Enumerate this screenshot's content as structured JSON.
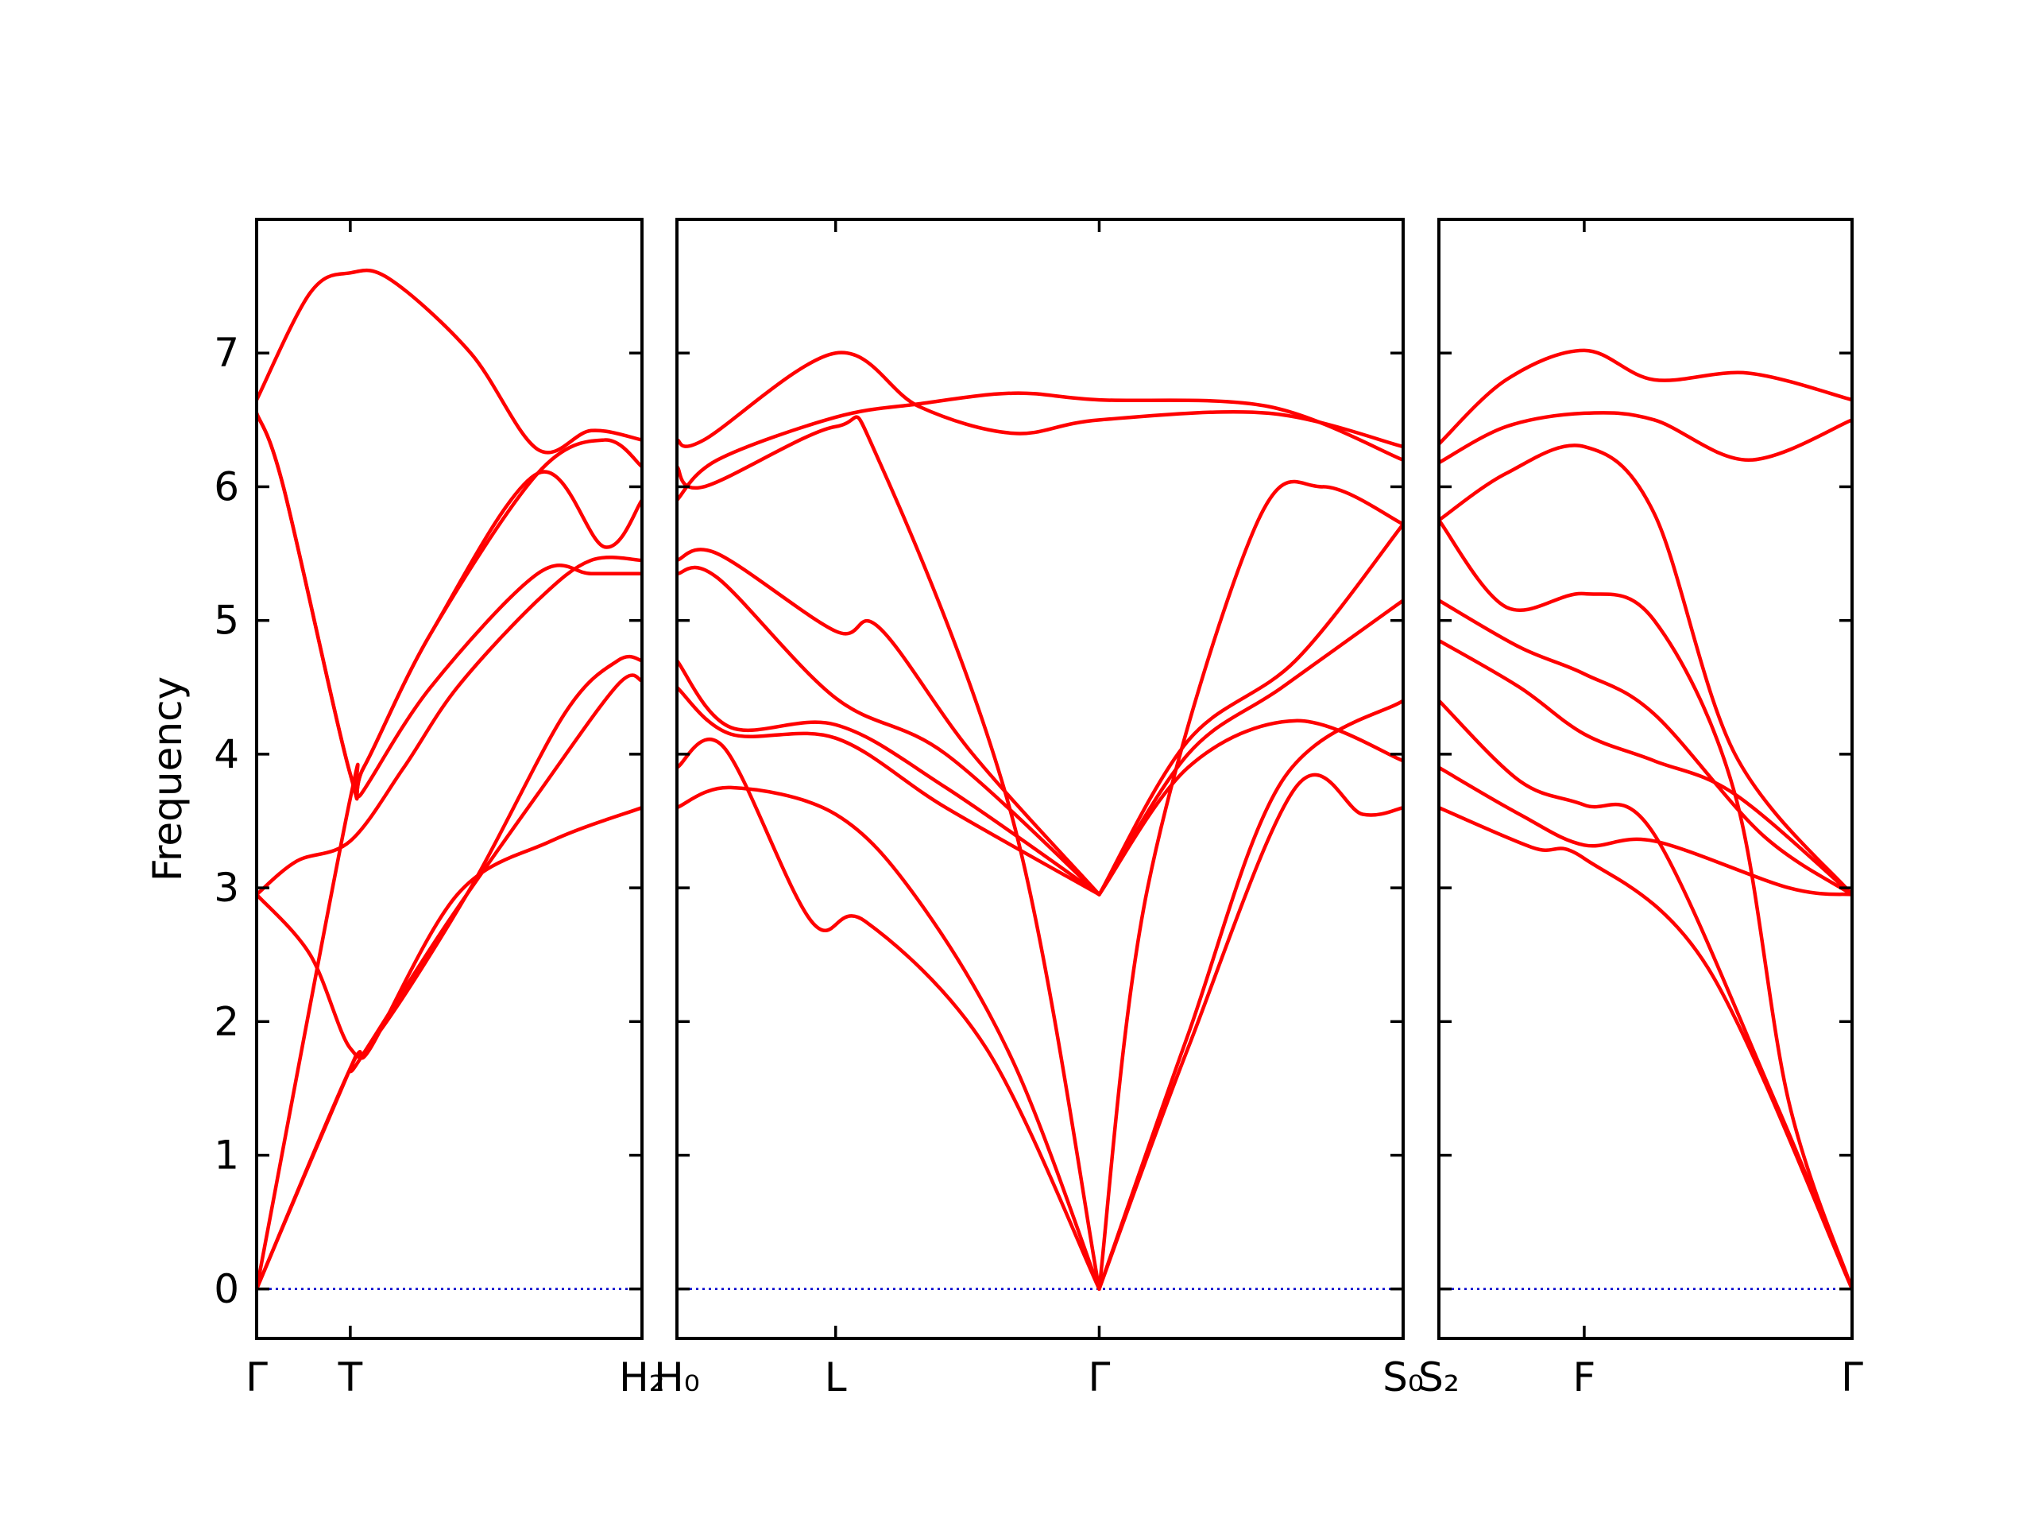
{
  "chart_data": {
    "type": "line",
    "ylabel": "Frequency",
    "ylim": [
      -0.37,
      8.0
    ],
    "yticks": [
      0,
      1,
      2,
      3,
      4,
      5,
      6,
      7
    ],
    "band_color": "#ff0000",
    "zero_line_color": "#0000cc",
    "panels": [
      {
        "xlim": [
          0,
          2.88
        ],
        "ticks": [
          {
            "x": 0,
            "label": "Γ"
          },
          {
            "x": 0.7,
            "label": "T"
          },
          {
            "x": 2.88,
            "label": "H₂"
          }
        ],
        "bands": [
          [
            [
              0,
              0
            ],
            [
              0.7,
              1.65
            ],
            [
              0.74,
              1.67
            ],
            [
              1.4,
              2.7
            ],
            [
              2.1,
              3.7
            ],
            [
              2.7,
              4.52
            ],
            [
              2.88,
              4.55
            ]
          ],
          [
            [
              0,
              0
            ],
            [
              0.7,
              1.65
            ],
            [
              0.85,
              1.8
            ],
            [
              1.5,
              2.95
            ],
            [
              2.2,
              3.35
            ],
            [
              2.88,
              3.6
            ]
          ],
          [
            [
              0,
              0
            ],
            [
              0.7,
              3.67
            ],
            [
              0.78,
              3.7
            ],
            [
              1.3,
              4.5
            ],
            [
              2.1,
              5.35
            ],
            [
              2.5,
              5.35
            ],
            [
              2.88,
              5.35
            ]
          ],
          [
            [
              0,
              2.95
            ],
            [
              0.4,
              2.5
            ],
            [
              0.7,
              1.8
            ],
            [
              0.9,
              1.9
            ],
            [
              1.6,
              3.0
            ],
            [
              2.3,
              4.3
            ],
            [
              2.7,
              4.7
            ],
            [
              2.88,
              4.7
            ]
          ],
          [
            [
              0,
              2.95
            ],
            [
              0.3,
              3.2
            ],
            [
              0.7,
              3.35
            ],
            [
              1.1,
              3.9
            ],
            [
              1.5,
              4.5
            ],
            [
              2.1,
              5.15
            ],
            [
              2.5,
              5.45
            ],
            [
              2.88,
              5.45
            ]
          ],
          [
            [
              0,
              6.55
            ],
            [
              0.2,
              6.0
            ],
            [
              0.7,
              3.85
            ],
            [
              0.8,
              3.9
            ],
            [
              1.3,
              4.9
            ],
            [
              2.1,
              6.1
            ],
            [
              2.6,
              5.55
            ],
            [
              2.88,
              5.9
            ]
          ],
          [
            [
              0,
              6.55
            ],
            [
              0.2,
              6.0
            ],
            [
              0.7,
              3.85
            ],
            [
              0.8,
              3.9
            ],
            [
              1.3,
              4.9
            ],
            [
              2.1,
              6.1
            ],
            [
              2.6,
              6.35
            ],
            [
              2.88,
              6.15
            ]
          ],
          [
            [
              0,
              6.65
            ],
            [
              0.4,
              7.45
            ],
            [
              0.7,
              7.6
            ],
            [
              1.0,
              7.55
            ],
            [
              1.6,
              7.0
            ],
            [
              2.1,
              6.28
            ],
            [
              2.5,
              6.42
            ],
            [
              2.88,
              6.35
            ]
          ]
        ]
      },
      {
        "xlim": [
          0,
          5.4
        ],
        "ticks": [
          {
            "x": 0,
            "label": "H₀"
          },
          {
            "x": 1.18,
            "label": "L"
          },
          {
            "x": 3.14,
            "label": "Γ"
          },
          {
            "x": 5.4,
            "label": "S₀"
          }
        ],
        "bands": [
          [
            [
              0,
              3.6
            ],
            [
              0.4,
              3.75
            ],
            [
              1.18,
              3.55
            ],
            [
              1.8,
              2.9
            ],
            [
              2.5,
              1.7
            ],
            [
              3.14,
              0
            ]
          ],
          [
            [
              0,
              3.9
            ],
            [
              0.35,
              4.05
            ],
            [
              1.0,
              2.75
            ],
            [
              1.4,
              2.75
            ],
            [
              2.3,
              1.8
            ],
            [
              3.14,
              0
            ]
          ],
          [
            [
              0,
              4.5
            ],
            [
              0.4,
              4.15
            ],
            [
              1.18,
              4.12
            ],
            [
              2.0,
              3.6
            ],
            [
              3.14,
              2.95
            ]
          ],
          [
            [
              0,
              4.7
            ],
            [
              0.4,
              4.2
            ],
            [
              1.18,
              4.22
            ],
            [
              2.0,
              3.75
            ],
            [
              3.14,
              2.95
            ]
          ],
          [
            [
              0,
              5.35
            ],
            [
              0.3,
              5.32
            ],
            [
              1.18,
              4.42
            ],
            [
              2.0,
              4.0
            ],
            [
              3.14,
              2.95
            ]
          ],
          [
            [
              0,
              5.45
            ],
            [
              0.3,
              5.5
            ],
            [
              1.18,
              4.92
            ],
            [
              1.5,
              4.95
            ],
            [
              2.2,
              4.0
            ],
            [
              3.14,
              2.95
            ]
          ],
          [
            [
              0,
              6.15
            ],
            [
              0.2,
              6.0
            ],
            [
              1.18,
              6.45
            ],
            [
              1.5,
              6.2
            ],
            [
              2.5,
              3.5
            ],
            [
              3.14,
              0
            ]
          ],
          [
            [
              0,
              5.9
            ],
            [
              0.3,
              6.2
            ],
            [
              1.18,
              6.52
            ],
            [
              1.8,
              6.62
            ],
            [
              2.5,
              6.7
            ],
            [
              3.14,
              6.65
            ],
            [
              4.4,
              6.6
            ],
            [
              5.4,
              6.2
            ]
          ],
          [
            [
              0,
              6.35
            ],
            [
              0.2,
              6.35
            ],
            [
              1.18,
              7.0
            ],
            [
              1.8,
              6.6
            ],
            [
              2.5,
              6.4
            ],
            [
              3.14,
              6.5
            ],
            [
              4.4,
              6.55
            ],
            [
              5.4,
              6.3
            ]
          ],
          [
            [
              3.14,
              0
            ],
            [
              3.8,
              1.8
            ],
            [
              4.6,
              3.75
            ],
            [
              5.1,
              3.55
            ],
            [
              5.4,
              3.6
            ]
          ],
          [
            [
              3.14,
              0
            ],
            [
              3.8,
              1.9
            ],
            [
              4.5,
              3.8
            ],
            [
              5.4,
              4.4
            ]
          ],
          [
            [
              3.14,
              2.95
            ],
            [
              3.8,
              3.9
            ],
            [
              4.6,
              4.25
            ],
            [
              5.4,
              3.95
            ]
          ],
          [
            [
              3.14,
              2.95
            ],
            [
              3.8,
              4.0
            ],
            [
              4.5,
              4.5
            ],
            [
              5.4,
              5.15
            ]
          ],
          [
            [
              3.14,
              2.95
            ],
            [
              3.8,
              4.1
            ],
            [
              4.6,
              4.7
            ],
            [
              5.4,
              5.72
            ]
          ],
          [
            [
              3.14,
              0
            ],
            [
              3.5,
              3.0
            ],
            [
              4.3,
              5.7
            ],
            [
              4.8,
              6.0
            ],
            [
              5.4,
              5.72
            ]
          ]
        ]
      },
      {
        "xlim": [
          0,
          3.07
        ],
        "ticks": [
          {
            "x": 0,
            "label": "S₂"
          },
          {
            "x": 1.08,
            "label": "F"
          },
          {
            "x": 3.07,
            "label": "Γ"
          }
        ],
        "bands": [
          [
            [
              0,
              3.6
            ],
            [
              0.7,
              3.3
            ],
            [
              1.08,
              3.22
            ],
            [
              2.0,
              2.4
            ],
            [
              3.07,
              0
            ]
          ],
          [
            [
              0,
              3.9
            ],
            [
              0.6,
              3.55
            ],
            [
              1.08,
              3.32
            ],
            [
              1.6,
              3.35
            ],
            [
              2.6,
              3.0
            ],
            [
              3.07,
              2.95
            ]
          ],
          [
            [
              0,
              4.4
            ],
            [
              0.6,
              3.8
            ],
            [
              1.08,
              3.62
            ],
            [
              1.6,
              3.4
            ],
            [
              2.5,
              1.4
            ],
            [
              3.07,
              0
            ]
          ],
          [
            [
              0,
              4.85
            ],
            [
              0.6,
              4.5
            ],
            [
              1.08,
              4.15
            ],
            [
              1.6,
              3.95
            ],
            [
              2.2,
              3.7
            ],
            [
              3.07,
              2.95
            ]
          ],
          [
            [
              0,
              5.15
            ],
            [
              0.6,
              4.8
            ],
            [
              1.08,
              4.6
            ],
            [
              1.6,
              4.3
            ],
            [
              2.4,
              3.4
            ],
            [
              3.07,
              2.95
            ]
          ],
          [
            [
              0,
              5.75
            ],
            [
              0.5,
              5.1
            ],
            [
              1.08,
              5.2
            ],
            [
              1.6,
              5.0
            ],
            [
              2.2,
              3.7
            ],
            [
              2.6,
              1.4
            ],
            [
              3.07,
              0
            ]
          ],
          [
            [
              0,
              5.75
            ],
            [
              0.5,
              6.1
            ],
            [
              1.08,
              6.3
            ],
            [
              1.6,
              5.8
            ],
            [
              2.2,
              4.0
            ],
            [
              3.07,
              2.95
            ]
          ],
          [
            [
              0,
              6.18
            ],
            [
              0.5,
              6.45
            ],
            [
              1.08,
              6.55
            ],
            [
              1.6,
              6.5
            ],
            [
              2.3,
              6.2
            ],
            [
              3.07,
              6.5
            ]
          ],
          [
            [
              0,
              6.32
            ],
            [
              0.5,
              6.8
            ],
            [
              1.08,
              7.02
            ],
            [
              1.6,
              6.8
            ],
            [
              2.3,
              6.85
            ],
            [
              3.07,
              6.65
            ]
          ]
        ]
      }
    ]
  }
}
